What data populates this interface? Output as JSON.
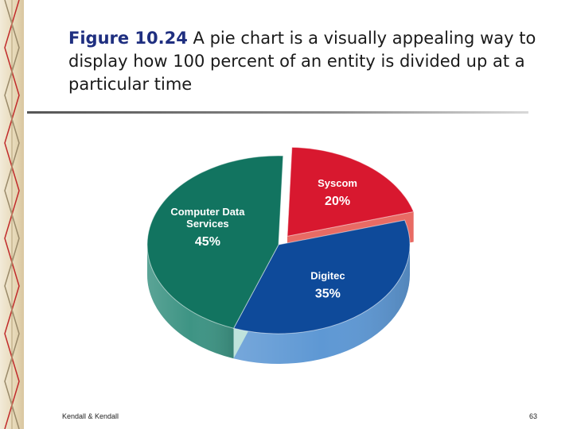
{
  "caption": {
    "figure_label": "Figure 10.24",
    "text": " A pie chart is a visually appealing way to display how 100 percent of an entity is divided up at a particular time"
  },
  "chart_data": {
    "type": "pie",
    "title": "",
    "slices": [
      {
        "name": "Syscom",
        "label": "20%",
        "value": 20,
        "color": "#d8182f",
        "side_color": "#e86b64"
      },
      {
        "name": "Digitec",
        "label": "35%",
        "value": 35,
        "color": "#0e4a9a",
        "side_color": "#5e98d4"
      },
      {
        "name": "Computer Data Services",
        "label_lines": [
          "Computer Data",
          "Services"
        ],
        "label": "45%",
        "value": 45,
        "color": "#127460",
        "side_color": "#3e9484"
      }
    ]
  },
  "footer": {
    "left": "Kendall & Kendall",
    "right": "63"
  },
  "colors": {
    "caption_accent": "#1f2f80",
    "rule": "#666666"
  }
}
